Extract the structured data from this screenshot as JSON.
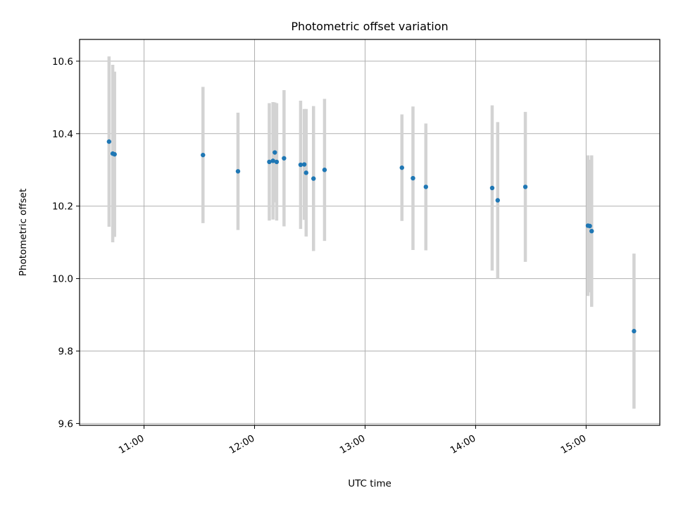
{
  "chart_data": {
    "type": "scatter",
    "title": "Photometric offset variation",
    "xlabel": "UTC time",
    "ylabel": "Photometric offset",
    "x_axis": {
      "kind": "time",
      "range": [
        "10:25",
        "15:40"
      ],
      "ticks": [
        "11:00",
        "12:00",
        "13:00",
        "14:00",
        "15:00"
      ]
    },
    "y_axis": {
      "range": [
        9.595,
        10.66
      ],
      "ticks": [
        "9.6",
        "9.8",
        "10.0",
        "10.2",
        "10.4",
        "10.6"
      ]
    },
    "grid": true,
    "legend": "none",
    "colors": {
      "marker": "#1f77b4",
      "errorbar": "#d3d3d3",
      "grid": "#b0b0b0"
    },
    "series": [
      {
        "points": [
          {
            "x": "10:41",
            "y": 10.378,
            "err": 0.235
          },
          {
            "x": "10:43",
            "y": 10.345,
            "err": 0.245
          },
          {
            "x": "10:44",
            "y": 10.343,
            "err": 0.228
          },
          {
            "x": "11:32",
            "y": 10.341,
            "err": 0.188
          },
          {
            "x": "11:51",
            "y": 10.296,
            "err": 0.162
          },
          {
            "x": "12:08",
            "y": 10.322,
            "err": 0.162
          },
          {
            "x": "12:10",
            "y": 10.325,
            "err": 0.162
          },
          {
            "x": "12:11",
            "y": 10.348,
            "err": 0.138
          },
          {
            "x": "12:12",
            "y": 10.322,
            "err": 0.162
          },
          {
            "x": "12:16",
            "y": 10.332,
            "err": 0.188
          },
          {
            "x": "12:25",
            "y": 10.314,
            "err": 0.177
          },
          {
            "x": "12:27",
            "y": 10.315,
            "err": 0.153
          },
          {
            "x": "12:28",
            "y": 10.292,
            "err": 0.176
          },
          {
            "x": "12:32",
            "y": 10.276,
            "err": 0.2
          },
          {
            "x": "12:38",
            "y": 10.3,
            "err": 0.196
          },
          {
            "x": "13:20",
            "y": 10.306,
            "err": 0.147
          },
          {
            "x": "13:26",
            "y": 10.277,
            "err": 0.198
          },
          {
            "x": "13:33",
            "y": 10.253,
            "err": 0.175
          },
          {
            "x": "14:09",
            "y": 10.25,
            "err": 0.228
          },
          {
            "x": "14:12",
            "y": 10.216,
            "err": 0.216
          },
          {
            "x": "14:27",
            "y": 10.253,
            "err": 0.207
          },
          {
            "x": "15:01",
            "y": 10.146,
            "err": 0.194
          },
          {
            "x": "15:02",
            "y": 10.145,
            "err": 0.183
          },
          {
            "x": "15:03",
            "y": 10.131,
            "err": 0.209
          },
          {
            "x": "15:26",
            "y": 9.855,
            "err": 0.214
          }
        ]
      }
    ]
  }
}
